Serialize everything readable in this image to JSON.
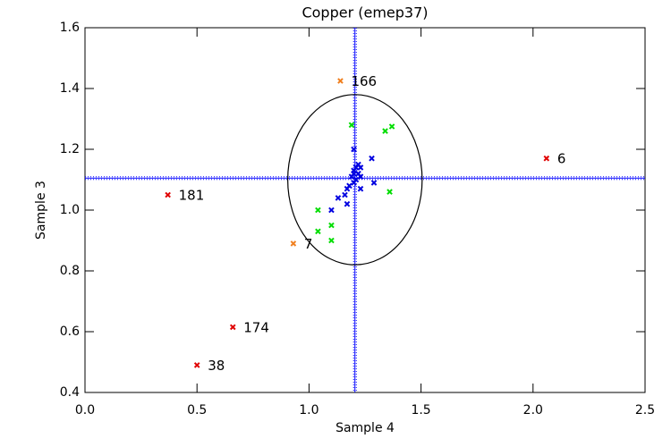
{
  "chart_data": {
    "type": "scatter",
    "title": "Copper (emep37)",
    "xlabel": "Sample 4",
    "ylabel": "Sample 3",
    "xlim": [
      0,
      2.5
    ],
    "ylim": [
      0.4,
      1.6
    ],
    "xticks": [
      {
        "value": 0,
        "label": "0.0"
      },
      0.5,
      {
        "value": 1,
        "label": "1.0"
      },
      1.5,
      {
        "value": 2,
        "label": "2.0"
      },
      2.5
    ],
    "yticks": [
      0.4,
      0.6,
      0.8,
      {
        "value": 1,
        "label": "1.0"
      },
      1.2,
      1.4,
      1.6
    ],
    "reference_lines": {
      "x": 1.205,
      "y": 1.105,
      "color": "#0000ff"
    },
    "ellipse": {
      "cx": 1.205,
      "cy": 1.1,
      "rx": 0.3,
      "ry": 0.28,
      "color": "#000000"
    },
    "series": [
      {
        "color": "#e00000",
        "x": [
          2.06,
          0.37,
          0.66,
          0.5
        ],
        "values": [
          1.17,
          1.05,
          0.615,
          0.49
        ],
        "point_labels": [
          "6",
          "181",
          "174",
          "38"
        ]
      },
      {
        "color": "#f08020",
        "x": [
          1.14,
          0.93
        ],
        "values": [
          1.425,
          0.89
        ],
        "point_labels": [
          "166",
          "7"
        ]
      },
      {
        "color": "#00dd00",
        "x": [
          1.19,
          1.34,
          1.37,
          1.04,
          1.36,
          1.04,
          1.1,
          1.1
        ],
        "values": [
          1.28,
          1.26,
          1.275,
          1.0,
          1.06,
          0.93,
          0.95,
          0.9
        ]
      },
      {
        "color": "#0000e0",
        "x": [
          1.2,
          1.28,
          1.22,
          1.21,
          1.23,
          1.2,
          1.22,
          1.19,
          1.21,
          1.2,
          1.29,
          1.18,
          1.23,
          1.17,
          1.16,
          1.13,
          1.17,
          1.1,
          1.2,
          1.23
        ],
        "values": [
          1.2,
          1.17,
          1.15,
          1.14,
          1.14,
          1.13,
          1.12,
          1.11,
          1.1,
          1.09,
          1.09,
          1.08,
          1.07,
          1.07,
          1.05,
          1.04,
          1.02,
          1.0,
          1.12,
          1.11
        ]
      }
    ]
  }
}
